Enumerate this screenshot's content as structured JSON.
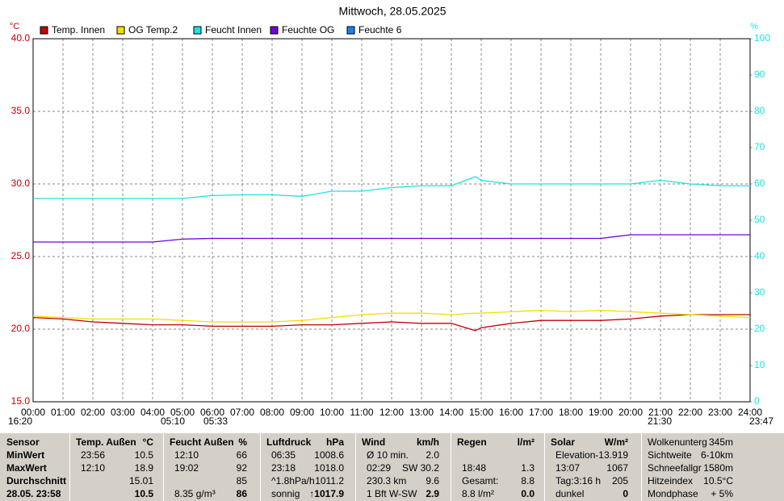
{
  "chart_data": {
    "type": "line",
    "title": "Mittwoch, 28.05.2025",
    "y_label": "°C",
    "y2_label": "%",
    "x": [
      0,
      1,
      2,
      3,
      4,
      5,
      6,
      7,
      8,
      9,
      10,
      11,
      12,
      13,
      14,
      14.8,
      15,
      16,
      17,
      18,
      19,
      20,
      21,
      22,
      23,
      24
    ],
    "series": [
      {
        "name": "Temp. Innen",
        "color": "#c00000",
        "values": [
          20.8,
          20.7,
          20.5,
          20.4,
          20.3,
          20.3,
          20.2,
          20.2,
          20.2,
          20.3,
          20.3,
          20.4,
          20.5,
          20.4,
          20.4,
          19.9,
          20.1,
          20.4,
          20.6,
          20.6,
          20.6,
          20.7,
          20.9,
          21.0,
          21.0,
          21.0
        ]
      },
      {
        "name": "OG Temp.2",
        "color": "#f0e000",
        "values": [
          20.9,
          20.8,
          20.7,
          20.7,
          20.7,
          20.6,
          20.5,
          20.5,
          20.5,
          20.6,
          20.8,
          21.0,
          21.1,
          21.1,
          21.0,
          21.1,
          21.1,
          21.2,
          21.3,
          21.2,
          21.3,
          21.2,
          21.1,
          21.0,
          20.9,
          20.8
        ]
      },
      {
        "name": "Feucht Innen",
        "color": "#20e0e0",
        "axis": "y2",
        "values": [
          56,
          56,
          56,
          56,
          56,
          56,
          56.8,
          57,
          57,
          56.6,
          58,
          58,
          59,
          59.5,
          59.5,
          62,
          61,
          60,
          60,
          60,
          60,
          60,
          61,
          60,
          59.5,
          59.5
        ]
      },
      {
        "name": "Feuchte OG",
        "color": "#7000e0",
        "axis": "y2",
        "values": [
          44,
          44,
          44,
          44,
          44,
          44.8,
          45,
          45,
          45,
          45,
          45,
          45,
          45,
          45,
          45,
          45,
          45,
          45,
          45,
          45,
          45,
          46,
          46,
          46,
          46,
          46
        ]
      },
      {
        "name": "Feuchte 6",
        "color": "#2080f0",
        "axis": "y2",
        "values": [
          null,
          null,
          null,
          null,
          null,
          null,
          null,
          null,
          null,
          null,
          null,
          null,
          null,
          null,
          null,
          null,
          null,
          null,
          null,
          null,
          null,
          null,
          null,
          null,
          null,
          null
        ]
      }
    ],
    "xlim": [
      0,
      24
    ],
    "xticks": [
      {
        "value": 0,
        "label": "00:00"
      },
      {
        "value": 1,
        "label": "01:00"
      },
      {
        "value": 2,
        "label": "02:00"
      },
      {
        "value": 3,
        "label": "03:00"
      },
      {
        "value": 4,
        "label": "04:00"
      },
      {
        "value": 5,
        "label": "05:00"
      },
      {
        "value": 6,
        "label": "06:00"
      },
      {
        "value": 7,
        "label": "07:00"
      },
      {
        "value": 8,
        "label": "08:00"
      },
      {
        "value": 9,
        "label": "09:00"
      },
      {
        "value": 10,
        "label": "10:00"
      },
      {
        "value": 11,
        "label": "11:00"
      },
      {
        "value": 12,
        "label": "12:00"
      },
      {
        "value": 13,
        "label": "13:00"
      },
      {
        "value": 14,
        "label": "14:00"
      },
      {
        "value": 15,
        "label": "15:00"
      },
      {
        "value": 16,
        "label": "16:00"
      },
      {
        "value": 17,
        "label": "17:00"
      },
      {
        "value": 18,
        "label": "18:00"
      },
      {
        "value": 19,
        "label": "19:00"
      },
      {
        "value": 20,
        "label": "20:00"
      },
      {
        "value": 21,
        "label": "21:00"
      },
      {
        "value": 22,
        "label": "22:00"
      },
      {
        "value": 23,
        "label": "23:00"
      },
      {
        "value": 24,
        "label": "24:00"
      }
    ],
    "ylim": [
      15,
      40
    ],
    "yticks": [
      {
        "value": 15,
        "label": "15.0"
      },
      {
        "value": 20,
        "label": "20.0"
      },
      {
        "value": 25,
        "label": "25.0"
      },
      {
        "value": 30,
        "label": "30.0"
      },
      {
        "value": 35,
        "label": "35.0"
      },
      {
        "value": 40,
        "label": "40.0"
      }
    ],
    "y2lim": [
      0,
      100
    ],
    "y2ticks": [
      0,
      10,
      20,
      30,
      40,
      50,
      60,
      70,
      80,
      90,
      100
    ],
    "grid": true,
    "annotations": [
      "16:20",
      "05:10",
      "05:33",
      "21:30",
      "23:47"
    ]
  },
  "table": {
    "row_labels": [
      "Sensor",
      "MinWert",
      "MaxWert",
      "Durchschnitt",
      "28.05. 23:58"
    ],
    "columns": [
      {
        "name": "Temp. Außen",
        "unit": "°C",
        "cells": [
          [
            "23:56",
            "10.5"
          ],
          [
            "12:10",
            "18.9"
          ],
          [
            null,
            "15.01"
          ],
          [
            null,
            "10.5"
          ]
        ]
      },
      {
        "name": "Feucht Außen",
        "unit": "%",
        "cells": [
          [
            "12:10",
            "66"
          ],
          [
            "19:02",
            "92"
          ],
          [
            null,
            "85"
          ],
          [
            "8.35 g/m³",
            "86"
          ]
        ]
      },
      {
        "name": "Luftdruck",
        "unit": "hPa",
        "cells": [
          [
            "06:35",
            "1008.6"
          ],
          [
            "23:18",
            "1018.0"
          ],
          [
            "^1.8hPa/h",
            "1011.2"
          ],
          [
            "sonnig",
            "↑1017.9"
          ]
        ]
      },
      {
        "name": "Wind",
        "unit": "km/h",
        "cells": [
          [
            "Ø 10 min.",
            "2.0"
          ],
          [
            "02:29",
            "SW 30.2"
          ],
          [
            "230.3 km",
            "9.6"
          ],
          [
            "1 Bft W-SW",
            "2.9"
          ]
        ]
      },
      {
        "name": "Regen",
        "unit": "l/m²",
        "cells": [
          [
            null,
            null
          ],
          [
            "18:48",
            "1.3"
          ],
          [
            "Gesamt:",
            "8.8"
          ],
          [
            "8.8 l/m²",
            "0.0"
          ]
        ]
      },
      {
        "name": "Solar",
        "unit": "W/m²",
        "cells": [
          [
            "Elevation",
            "-13.919"
          ],
          [
            "13:07",
            "1067"
          ],
          [
            "Tag:3:16 h",
            "205"
          ],
          [
            "dunkel",
            "0"
          ]
        ]
      }
    ],
    "extra": [
      [
        "Wolkenunterg",
        "345m"
      ],
      [
        "Sichtweite",
        "6-10km"
      ],
      [
        "Schneefallgr",
        "1580m"
      ],
      [
        "Hitzeindex",
        "10.5°C"
      ],
      [
        "Mondphase",
        "+ 5%"
      ]
    ]
  }
}
